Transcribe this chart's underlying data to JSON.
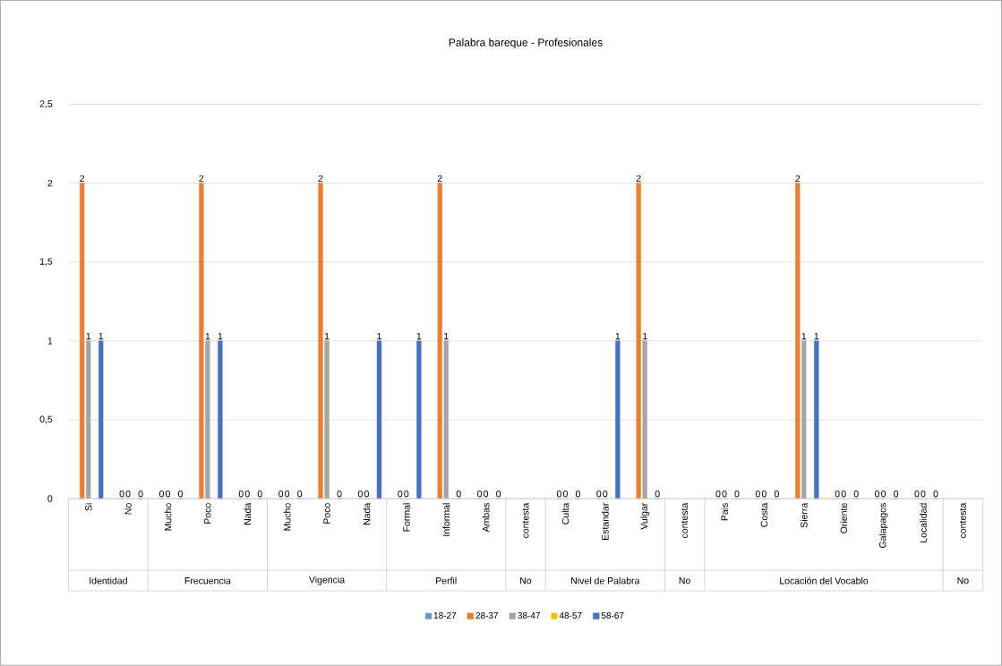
{
  "chart_data": {
    "type": "bar",
    "title": "Palabra bareque - Profesionales",
    "categories": [
      "Si",
      "No",
      "Mucho",
      "Poco",
      "Nada",
      "Mucho",
      "Poco",
      "Nada",
      "Formal",
      "Informal",
      "Ambas",
      "contesta",
      "Culta",
      "Estandar",
      "Vulgar",
      "contesta",
      "Pais",
      "Costa",
      "Sierra",
      "Oriente",
      "Galapagos",
      "Localidad",
      "contesta"
    ],
    "series": [
      {
        "name": "18-27",
        "color": "#5b9bd5",
        "values": [
          null,
          null,
          null,
          null,
          null,
          null,
          null,
          null,
          null,
          null,
          null,
          null,
          null,
          null,
          null,
          null,
          null,
          null,
          null,
          null,
          null,
          null,
          null
        ]
      },
      {
        "name": "28-37",
        "color": "#ed7d31",
        "values": [
          2,
          0,
          0,
          2,
          0,
          0,
          2,
          0,
          0,
          2,
          0,
          null,
          0,
          0,
          2,
          null,
          0,
          0,
          2,
          0,
          0,
          0,
          null
        ]
      },
      {
        "name": "38-47",
        "color": "#a5a5a5",
        "values": [
          1,
          0,
          0,
          1,
          0,
          0,
          1,
          0,
          0,
          1,
          0,
          null,
          0,
          0,
          1,
          null,
          0,
          0,
          1,
          0,
          0,
          0,
          null
        ]
      },
      {
        "name": "48-57",
        "color": "#ffc000",
        "values": [
          null,
          null,
          null,
          null,
          null,
          null,
          null,
          null,
          null,
          null,
          null,
          null,
          null,
          null,
          null,
          null,
          null,
          null,
          null,
          null,
          null,
          null,
          null
        ]
      },
      {
        "name": "58-67",
        "color": "#4472c4",
        "values": [
          1,
          0,
          0,
          1,
          0,
          0,
          0,
          1,
          1,
          0,
          0,
          null,
          0,
          1,
          0,
          null,
          0,
          0,
          1,
          0,
          0,
          0,
          null
        ]
      }
    ],
    "ylim": [
      0,
      2.5
    ],
    "yticks": [
      {
        "value": 0,
        "label": "0"
      },
      {
        "value": 0.5,
        "label": "0,5"
      },
      {
        "value": 1,
        "label": "1"
      },
      {
        "value": 1.5,
        "label": "1,5"
      },
      {
        "value": 2,
        "label": "2"
      },
      {
        "value": 2.5,
        "label": "2,5"
      }
    ],
    "grid": "y",
    "legend": "bottom",
    "data_labels": true,
    "annotations": [
      "Identidad",
      "Frecuencia",
      "Vigencia",
      "Perfil",
      "No",
      "Nivel de Palabra",
      "No",
      "Locación del Vocablo",
      "No"
    ]
  }
}
